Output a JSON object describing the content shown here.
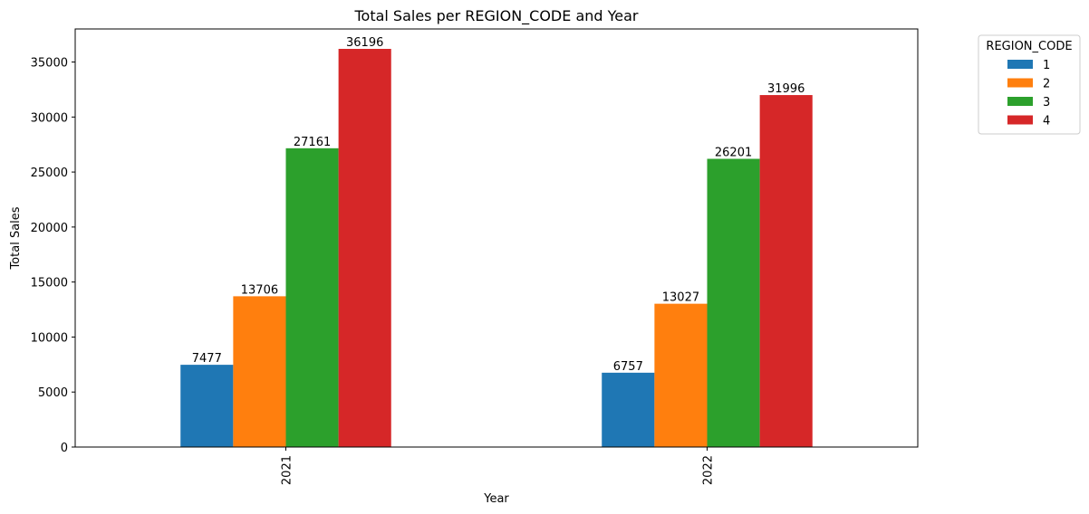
{
  "chart_data": {
    "type": "bar",
    "title": "Total Sales per REGION_CODE and Year",
    "xlabel": "Year",
    "ylabel": "Total Sales",
    "categories": [
      "2021",
      "2022"
    ],
    "series": [
      {
        "name": "1",
        "values": [
          7477,
          6757
        ],
        "color": "#1f77b4"
      },
      {
        "name": "2",
        "values": [
          13706,
          13027
        ],
        "color": "#ff7f0e"
      },
      {
        "name": "3",
        "values": [
          27161,
          26201
        ],
        "color": "#2ca02c"
      },
      {
        "name": "4",
        "values": [
          36196,
          31996
        ],
        "color": "#d62728"
      }
    ],
    "ylim": [
      0,
      38005.8
    ],
    "yticks": [
      0,
      5000,
      10000,
      15000,
      20000,
      25000,
      30000,
      35000
    ],
    "legend": {
      "title": "REGION_CODE",
      "placement": "outside-top-right"
    },
    "grid": false,
    "xtick_rotation": 90
  }
}
